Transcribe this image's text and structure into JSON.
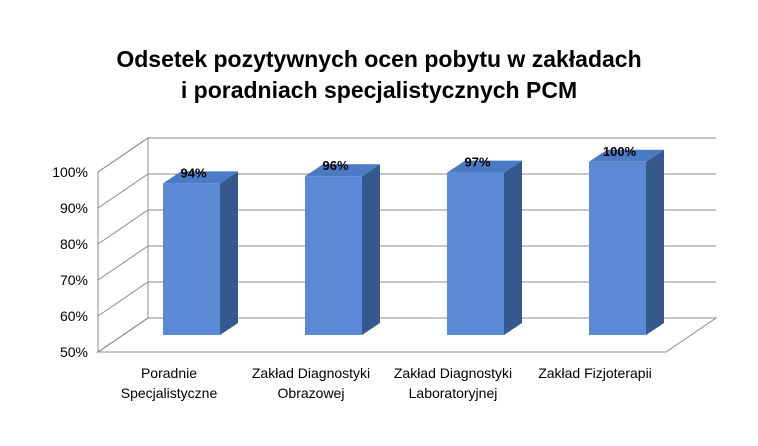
{
  "chart_data": {
    "type": "bar",
    "title_lines": [
      "Odsetek pozytywnych ocen pobytu w zakładach",
      "i poradniach specjalistycznych PCM"
    ],
    "categories": [
      [
        "Poradnie",
        "Specjalistyczne"
      ],
      [
        "Zakład Diagnostyki",
        "Obrazowej"
      ],
      [
        "Zakład Diagnostyki",
        "Laboratoryjnej"
      ],
      [
        "Zakład Fizjoterapii"
      ]
    ],
    "values": [
      94,
      96,
      97,
      100
    ],
    "value_labels": [
      "94%",
      "96%",
      "97%",
      "100%"
    ],
    "yticks": [
      "50%",
      "60%",
      "70%",
      "80%",
      "90%",
      "100%"
    ],
    "ylim": [
      50,
      100
    ],
    "grid": true,
    "legend": "none",
    "style": "3d-column",
    "colors": {
      "front": "#5a8ad6",
      "side": "#35598f",
      "top": "#4a7bc4",
      "grid": "#8c8c8c"
    }
  }
}
